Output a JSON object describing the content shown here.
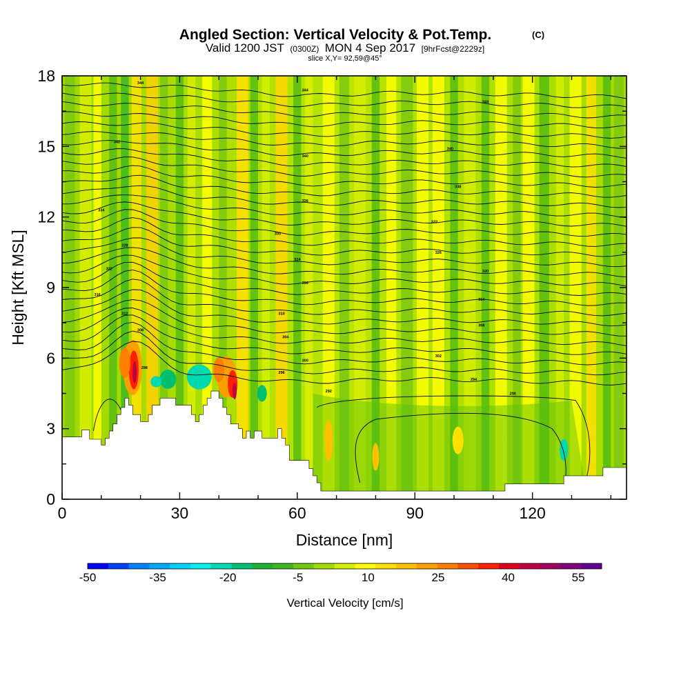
{
  "header": {
    "title_main": "Angled Section: Vertical Velocity & Pot.Temp.",
    "title_unit": "(C)",
    "valid_a": "Valid 1200 JST",
    "valid_b": "(0300Z)",
    "valid_c": "MON 4 Sep 2017",
    "valid_d": "[9hrFcst@2229z]",
    "slice": "slice X,Y= 92,59@45°"
  },
  "chart_data": {
    "type": "heatmap",
    "xlabel": "Distance [nm]",
    "ylabel": "Height [Kft MSL]",
    "xlim": [
      0,
      144
    ],
    "ylim": [
      0,
      18
    ],
    "x_ticks": [
      0,
      30,
      60,
      90,
      120
    ],
    "y_ticks": [
      0,
      3,
      6,
      9,
      12,
      15,
      18
    ],
    "colorbar": {
      "label": "Vertical Velocity [cm/s]",
      "range": [
        -50,
        60
      ],
      "step": 5,
      "tick_labels": [
        -50,
        -35,
        -20,
        -5,
        10,
        25,
        40,
        55
      ],
      "colors": [
        "#0000ff",
        "#0040ff",
        "#0080ff",
        "#00a8ff",
        "#00d0ff",
        "#00f0f0",
        "#00d8b0",
        "#00c070",
        "#20b030",
        "#40b820",
        "#70c810",
        "#a0dc00",
        "#d0f000",
        "#ffff00",
        "#ffe000",
        "#ffc000",
        "#ffa000",
        "#ff8000",
        "#ff5000",
        "#ff2000",
        "#e00020",
        "#c00040",
        "#a00060",
        "#800080",
        "#600090"
      ]
    },
    "theta_contour_labels": [
      {
        "x": 20,
        "y": 17.7,
        "value": 344
      },
      {
        "x": 62,
        "y": 17.4,
        "value": 344
      },
      {
        "x": 108,
        "y": 16.9,
        "value": 344
      },
      {
        "x": 14,
        "y": 15.2,
        "value": 342
      },
      {
        "x": 62,
        "y": 14.6,
        "value": 340
      },
      {
        "x": 99,
        "y": 14.9,
        "value": 340
      },
      {
        "x": 101,
        "y": 13.3,
        "value": 338
      },
      {
        "x": 62,
        "y": 12.7,
        "value": 336
      },
      {
        "x": 10,
        "y": 12.3,
        "value": 334
      },
      {
        "x": 95,
        "y": 11.8,
        "value": 332
      },
      {
        "x": 55,
        "y": 11.3,
        "value": 330
      },
      {
        "x": 16,
        "y": 10.8,
        "value": 328
      },
      {
        "x": 96,
        "y": 10.5,
        "value": 326
      },
      {
        "x": 60,
        "y": 10.2,
        "value": 324
      },
      {
        "x": 12,
        "y": 9.8,
        "value": 322
      },
      {
        "x": 108,
        "y": 9.7,
        "value": 320
      },
      {
        "x": 62,
        "y": 9.2,
        "value": 318
      },
      {
        "x": 9,
        "y": 8.7,
        "value": 316
      },
      {
        "x": 107,
        "y": 8.5,
        "value": 314
      },
      {
        "x": 16,
        "y": 7.9,
        "value": 312
      },
      {
        "x": 56,
        "y": 7.9,
        "value": 310
      },
      {
        "x": 107,
        "y": 7.4,
        "value": 308
      },
      {
        "x": 20,
        "y": 7.2,
        "value": 306
      },
      {
        "x": 57,
        "y": 6.9,
        "value": 304
      },
      {
        "x": 96,
        "y": 6.1,
        "value": 302
      },
      {
        "x": 62,
        "y": 5.9,
        "value": 300
      },
      {
        "x": 21,
        "y": 5.6,
        "value": 298
      },
      {
        "x": 56,
        "y": 5.4,
        "value": 296
      },
      {
        "x": 105,
        "y": 5.1,
        "value": 294
      },
      {
        "x": 68,
        "y": 4.6,
        "value": 292
      },
      {
        "x": 115,
        "y": 4.5,
        "value": 290
      }
    ]
  }
}
